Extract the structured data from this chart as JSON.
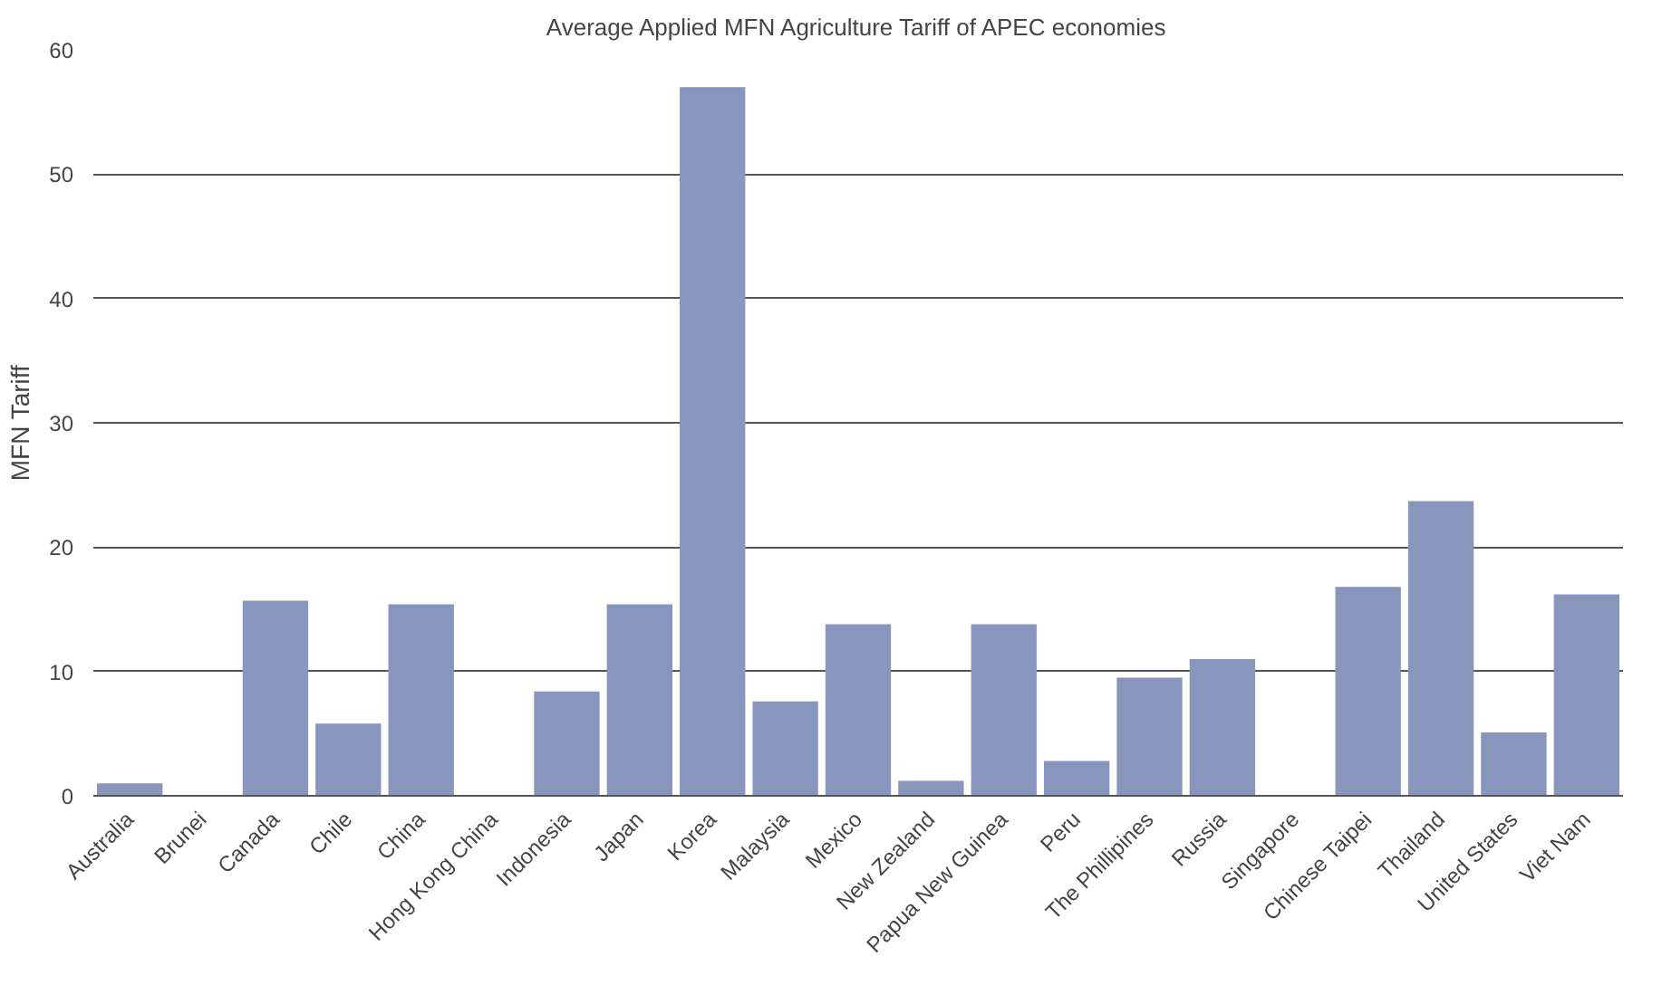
{
  "chart_data": {
    "type": "bar",
    "title": "Average Applied MFN Agriculture Tariff of APEC economies",
    "ylabel": "MFN Tariff",
    "categories": [
      "Australia",
      "Brunei",
      "Canada",
      "Chile",
      "China",
      "Hong Kong China",
      "Indonesia",
      "Japan",
      "Korea",
      "Malaysia",
      "Mexico",
      "New Zealand",
      "Papua New Guinea",
      "Peru",
      "The Phillipines",
      "Russia",
      "Singapore",
      "Chinese Taipei",
      "Thailand",
      "United States",
      "Viet Nam"
    ],
    "values": [
      1.0,
      0,
      15.7,
      5.8,
      15.4,
      0,
      8.4,
      15.4,
      57.0,
      7.6,
      13.8,
      1.2,
      13.8,
      2.8,
      9.5,
      11.0,
      0,
      16.8,
      23.7,
      5.1,
      16.2
    ],
    "color": "#8896be",
    "ylim": [
      0,
      60
    ],
    "yticks": [
      0,
      10,
      20,
      30,
      40,
      50,
      60
    ],
    "grid": "y"
  }
}
